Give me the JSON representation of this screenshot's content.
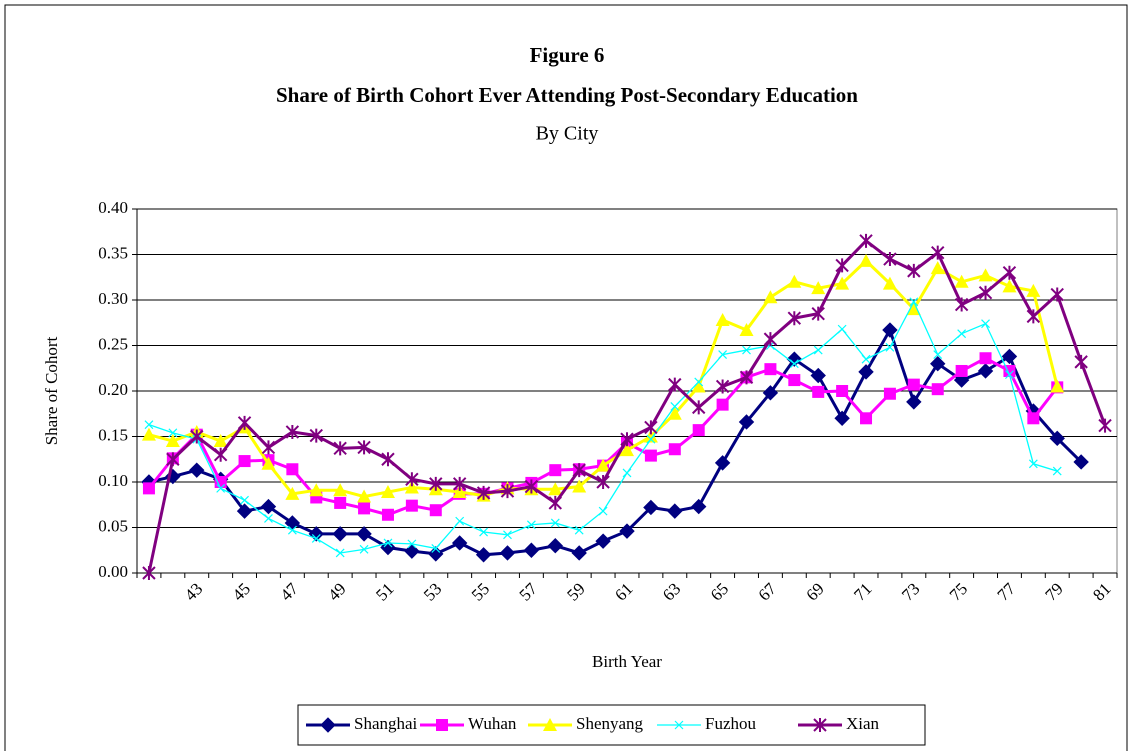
{
  "chart_data": {
    "type": "line",
    "title": "Figure 6",
    "subtitle": "Share of Birth Cohort Ever Attending Post-Secondary Education",
    "subtitle2": "By City",
    "x_label": "Birth Year",
    "y_label": "Share of Cohort",
    "categories": [
      null,
      null,
      "43",
      null,
      "45",
      null,
      "47",
      null,
      "49",
      null,
      "51",
      null,
      "53",
      null,
      "55",
      null,
      "57",
      null,
      "59",
      null,
      "61",
      null,
      "63",
      null,
      "65",
      null,
      "67",
      null,
      "69",
      null,
      "71",
      null,
      "73",
      null,
      "75",
      null,
      "77",
      null,
      "79",
      null,
      "81"
    ],
    "ylim": [
      0,
      0.4
    ],
    "yticks": [
      {
        "value": 0,
        "label": "0.00"
      },
      {
        "value": 0.05,
        "label": "0.05"
      },
      {
        "value": 0.1,
        "label": "0.10"
      },
      {
        "value": 0.15,
        "label": "0.15"
      },
      {
        "value": 0.2,
        "label": "0.20"
      },
      {
        "value": 0.25,
        "label": "0.25"
      },
      {
        "value": 0.3,
        "label": "0.30"
      },
      {
        "value": 0.35,
        "label": "0.35"
      },
      {
        "value": 0.4,
        "label": "0.40"
      }
    ],
    "grid": true,
    "legend": "bottom",
    "series": [
      {
        "name": "Shanghai",
        "color": "#000080",
        "marker": "diamond",
        "values": [
          0.1,
          0.106,
          0.113,
          0.103,
          0.068,
          0.073,
          0.055,
          0.043,
          0.043,
          0.043,
          0.028,
          0.024,
          0.021,
          0.033,
          0.02,
          0.022,
          0.025,
          0.03,
          0.022,
          0.035,
          0.046,
          0.072,
          0.068,
          0.073,
          0.121,
          0.166,
          0.198,
          0.235,
          0.217,
          0.17,
          0.221,
          0.267,
          0.188,
          0.23,
          0.212,
          0.222,
          0.238,
          0.178,
          0.148,
          0.122,
          null
        ]
      },
      {
        "name": "Wuhan",
        "color": "#FF00FF",
        "marker": "square",
        "values": [
          0.093,
          0.126,
          0.152,
          0.1,
          0.123,
          0.124,
          0.114,
          0.083,
          0.077,
          0.071,
          0.064,
          0.074,
          0.069,
          0.087,
          0.087,
          0.093,
          0.099,
          0.113,
          0.114,
          0.118,
          0.143,
          0.129,
          0.136,
          0.157,
          0.185,
          0.215,
          0.224,
          0.212,
          0.199,
          0.2,
          0.17,
          0.197,
          0.207,
          0.202,
          0.222,
          0.236,
          0.222,
          0.17,
          0.204,
          null,
          null
        ]
      },
      {
        "name": "Shenyang",
        "color": "#FFFF00",
        "marker": "triangle",
        "values": [
          0.152,
          0.145,
          0.155,
          0.145,
          0.16,
          0.12,
          0.087,
          0.091,
          0.091,
          0.084,
          0.089,
          0.094,
          0.092,
          0.089,
          0.085,
          0.093,
          0.092,
          0.092,
          0.095,
          0.118,
          0.135,
          0.15,
          0.175,
          0.205,
          0.278,
          0.267,
          0.303,
          0.32,
          0.313,
          0.318,
          0.343,
          0.318,
          0.29,
          0.335,
          0.32,
          0.327,
          0.315,
          0.31,
          0.205,
          null,
          null
        ]
      },
      {
        "name": "Fuzhou",
        "color": "#00FFFF",
        "marker": "x",
        "values": [
          0.163,
          0.154,
          0.147,
          0.093,
          0.08,
          0.06,
          0.047,
          0.038,
          0.022,
          0.026,
          0.033,
          0.032,
          0.027,
          0.057,
          0.045,
          0.042,
          0.053,
          0.055,
          0.047,
          0.068,
          0.11,
          0.147,
          0.183,
          0.21,
          0.24,
          0.245,
          0.25,
          0.23,
          0.245,
          0.268,
          0.235,
          0.248,
          0.298,
          0.24,
          0.263,
          0.274,
          0.218,
          0.12,
          0.112,
          null,
          null
        ]
      },
      {
        "name": "Xian",
        "color": "#800080",
        "marker": "star",
        "values": [
          0,
          0.125,
          0.15,
          0.13,
          0.165,
          0.138,
          0.155,
          0.151,
          0.137,
          0.138,
          0.125,
          0.103,
          0.098,
          0.098,
          0.088,
          0.09,
          0.095,
          0.077,
          0.113,
          0.1,
          0.147,
          0.16,
          0.207,
          0.182,
          0.205,
          0.215,
          0.257,
          0.28,
          0.285,
          0.338,
          0.365,
          0.345,
          0.332,
          0.352,
          0.295,
          0.308,
          0.33,
          0.282,
          0.306,
          0.232,
          0.162
        ]
      }
    ]
  }
}
